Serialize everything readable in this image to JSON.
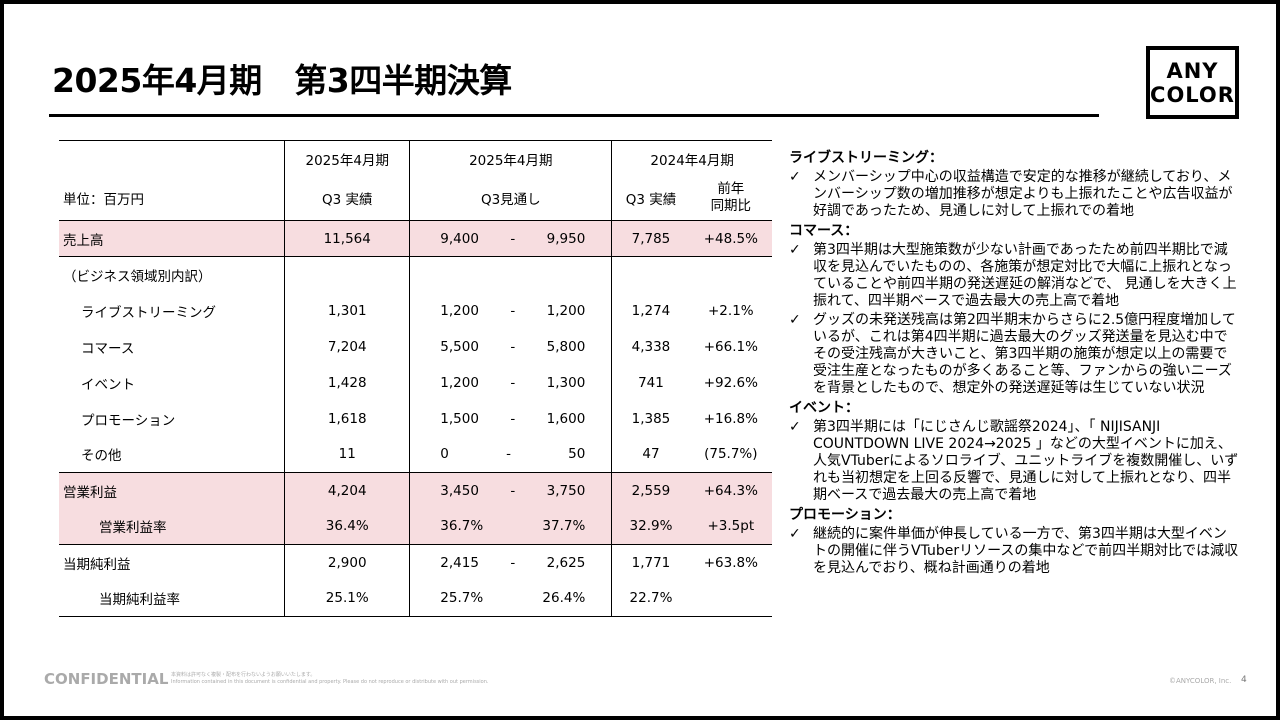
{
  "title": "2025年4月期　第3四半期決算",
  "logo": [
    "ANY",
    "COLOR"
  ],
  "table": {
    "unit": "単位：百万円",
    "h1": [
      "2025年4月期",
      "2025年4月期",
      "2024年4月期"
    ],
    "h2": [
      "Q3 実績",
      "Q3見通し",
      "Q3 実績",
      "前年",
      "同期比"
    ],
    "rows": [
      {
        "label": "売上高",
        "a": "11,564",
        "lo": "9,400",
        "hi": "9,950",
        "p": "7,785",
        "y": "+48.5%"
      },
      {
        "label": "（ビジネス領域別内訳）"
      },
      {
        "label": "ライブストリーミング",
        "a": "1,301",
        "lo": "1,200",
        "hi": "1,200",
        "p": "1,274",
        "y": "+2.1%"
      },
      {
        "label": "コマース",
        "a": "7,204",
        "lo": "5,500",
        "hi": "5,800",
        "p": "4,338",
        "y": "+66.1%"
      },
      {
        "label": "イベント",
        "a": "1,428",
        "lo": "1,200",
        "hi": "1,300",
        "p": "741",
        "y": "+92.6%"
      },
      {
        "label": "プロモーション",
        "a": "1,618",
        "lo": "1,500",
        "hi": "1,600",
        "p": "1,385",
        "y": "+16.8%"
      },
      {
        "label": "その他",
        "a": "11",
        "lo": "0",
        "hi": "50",
        "p": "47",
        "y": "(75.7%)"
      },
      {
        "label": "営業利益",
        "a": "4,204",
        "lo": "3,450",
        "hi": "3,750",
        "p": "2,559",
        "y": "+64.3%"
      },
      {
        "label": "営業利益率",
        "a": "36.4%",
        "lo": "36.7%",
        "hi": "37.7%",
        "p": "32.9%",
        "y": "+3.5pt"
      },
      {
        "label": "当期純利益",
        "a": "2,900",
        "lo": "2,415",
        "hi": "2,625",
        "p": "1,771",
        "y": "+63.8%"
      },
      {
        "label": "当期純利益率",
        "a": "25.1%",
        "lo": "25.7%",
        "hi": "26.4%",
        "p": "22.7%",
        "y": ""
      }
    ],
    "dash": "-"
  },
  "notes": [
    {
      "h": "ライブストリーミング：",
      "b": [
        "メンバーシップ中心の収益構造で安定的な推移が継続しており、メンバーシップ数の増加推移が想定よりも上振れたことや広告収益が好調であったため、見通しに対して上振れでの着地"
      ]
    },
    {
      "h": "コマース：",
      "b": [
        "第3四半期は大型施策数が少ない計画であったため前四半期比で減収を見込んでいたものの、各施策が想定対比で大幅に上振れとなっていることや前四半期の発送遅延の解消などで、 見通しを大きく上振れて、四半期ベースで過去最大の売上高で着地",
        "グッズの未発送残高は第2四半期末からさらに2.5億円程度増加しているが、これは第4四半期に過去最大のグッズ発送量を見込む中でその受注残高が大きいこと、第3四半期の施策が想定以上の需要で受注生産となったものが多くあること等、ファンからの強いニーズを背景としたもので、想定外の発送遅延等は生じていない状況"
      ]
    },
    {
      "h": "イベント：",
      "b": [
        "第3四半期には「にじさんじ歌謡祭2024」、「 NIJISANJI COUNTDOWN LIVE 2024→2025 」などの大型イベントに加え、人気VTuberによるソロライブ、ユニットライブを複数開催し、いずれも当初想定を上回る反響で、見通しに対して上振れとなり、四半期ベースで過去最大の売上高で着地"
      ]
    },
    {
      "h": "プロモーション：",
      "b": [
        "継続的に案件単価が伸長している一方で、第3四半期は大型イベントの開催に伴うVTuberリソースの集中などで前四半期対比では減収を見込んでおり、概ね計画通りの着地"
      ]
    }
  ],
  "check": "✓",
  "footer": {
    "confidential": "CONFIDENTIAL",
    "notice_jp": "本資料は許可なく複製・配布を行わないようお願いいたします。",
    "notice_en": "Information contained in this document is confidential and property. Please do not reproduce or distribute with out permission.",
    "copyright": "©ANYCOLOR, Inc.",
    "page": "4"
  }
}
